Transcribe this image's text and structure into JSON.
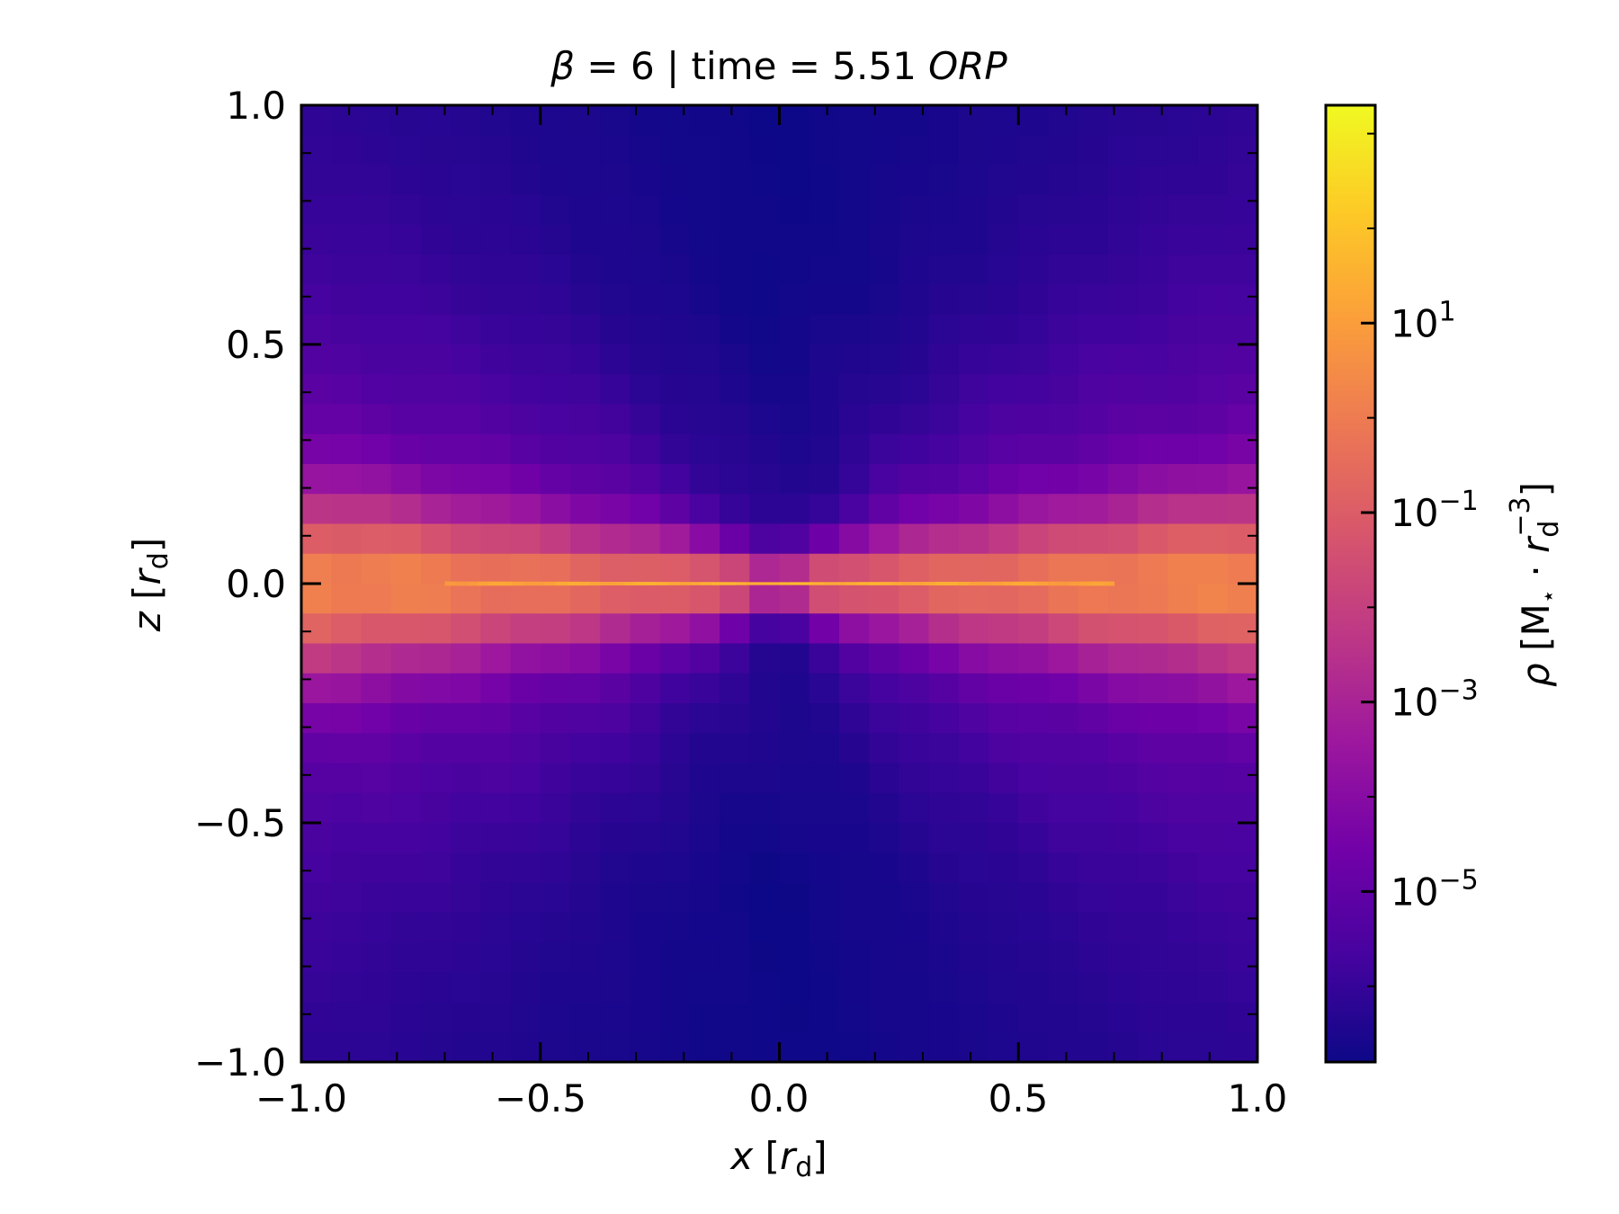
{
  "chart_data": {
    "type": "heatmap",
    "title": {
      "beta_symbol": "β",
      "beta_text": " = 6 | time = 5.51 ",
      "unit": "ORP"
    },
    "xlabel": {
      "var": "x",
      "open": " [",
      "r": "r",
      "sub": "d",
      "close": "]"
    },
    "ylabel": {
      "var": "z",
      "open": " [",
      "r": "r",
      "sub": "d",
      "close": "]"
    },
    "colorbar_label": {
      "var": "ρ",
      "open": " [M",
      "star": "⋆",
      "dot": " · ",
      "r": "r",
      "sub": "d",
      "sup": "−3",
      "close": "]"
    },
    "xlim": [
      -1.0,
      1.0
    ],
    "ylim": [
      -1.0,
      1.0
    ],
    "x_ticks": [
      {
        "value": -1.0,
        "label": "−1.0"
      },
      {
        "value": -0.5,
        "label": "−0.5"
      },
      {
        "value": 0.0,
        "label": "0.0"
      },
      {
        "value": 0.5,
        "label": "0.5"
      },
      {
        "value": 1.0,
        "label": "1.0"
      }
    ],
    "y_ticks": [
      {
        "value": -1.0,
        "label": "−1.0"
      },
      {
        "value": -0.5,
        "label": "−0.5"
      },
      {
        "value": 0.0,
        "label": "0.0"
      },
      {
        "value": 0.5,
        "label": "0.5"
      },
      {
        "value": 1.0,
        "label": "1.0"
      }
    ],
    "colorbar": {
      "scale": "log",
      "colormap": "plasma",
      "range_log10": [
        -6.8,
        3.3
      ],
      "ticks": [
        {
          "exp": -5,
          "base": "10",
          "sup": "−5"
        },
        {
          "exp": -3,
          "base": "10",
          "sup": "−3"
        },
        {
          "exp": -1,
          "base": "10",
          "sup": "−1"
        },
        {
          "exp": 1,
          "base": "10",
          "sup": "1"
        }
      ]
    },
    "density_model": {
      "description_of_field": "log10 density vs x,z",
      "midplane_log10_rho": 1.6,
      "disk_core_log10_rho": -0.2,
      "background_log10_rho": -6.2,
      "polar_axis_log10_rho": -6.6,
      "grid_nx": 32,
      "grid_nz": 32
    },
    "colormap_stops": [
      "#0d0887",
      "#46039f",
      "#7201a8",
      "#9c179e",
      "#bd3786",
      "#d8576b",
      "#ed7953",
      "#fb9f3a",
      "#fdca26",
      "#f0f921"
    ]
  }
}
